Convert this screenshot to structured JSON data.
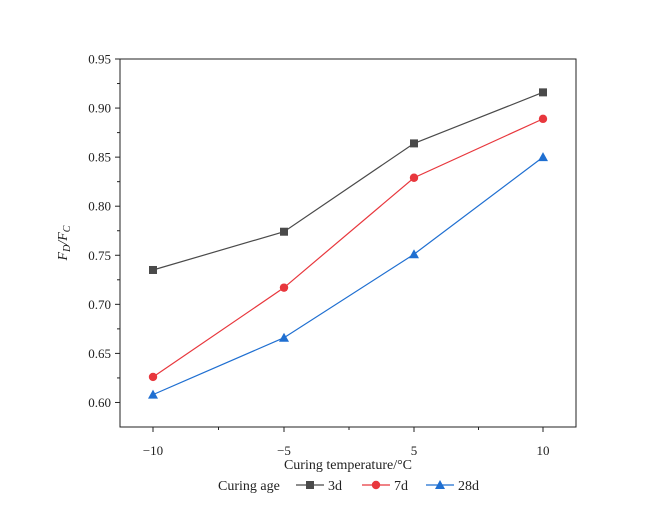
{
  "chart_data": {
    "type": "line",
    "xlabel": "Curing temperature/°C",
    "ylabel_main": "F",
    "ylabel_sub1": "D",
    "ylabel_mid": "/F",
    "ylabel_sub2": "C",
    "categories": [
      "−10",
      "−5",
      "5",
      "10"
    ],
    "y_ticks": [
      "0.60",
      "0.65",
      "0.70",
      "0.75",
      "0.80",
      "0.85",
      "0.90",
      "0.95"
    ],
    "ylim": [
      0.575,
      0.95
    ],
    "grid": false,
    "legend": {
      "title": "Curing age",
      "placement": "bottom"
    },
    "series": [
      {
        "name": "3d",
        "color": "#4a4a4a",
        "marker": "square",
        "values": [
          0.735,
          0.774,
          0.864,
          0.916
        ]
      },
      {
        "name": "7d",
        "color": "#e8373d",
        "marker": "circle",
        "values": [
          0.626,
          0.717,
          0.829,
          0.889
        ]
      },
      {
        "name": "28d",
        "color": "#1f6fd1",
        "marker": "triangle",
        "values": [
          0.608,
          0.666,
          0.751,
          0.85
        ]
      }
    ]
  }
}
